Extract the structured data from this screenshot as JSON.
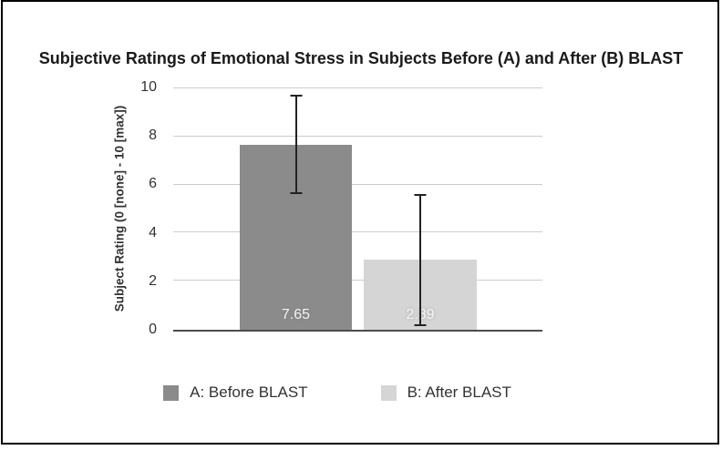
{
  "frame": {
    "border_color": "#000000",
    "background": "#ffffff"
  },
  "chart_data": {
    "type": "bar",
    "title": "Subjective Ratings of Emotional Stress in Subjects Before (A) and After (B) BLAST",
    "xlabel": "",
    "ylabel": "Subject Rating (0 [none] - 10 [max])",
    "ylim": [
      0,
      10
    ],
    "yticks": [
      0,
      2,
      4,
      6,
      8,
      10
    ],
    "grid": true,
    "legend_position": "bottom",
    "error_bars": true,
    "series": [
      {
        "name": "A: Before BLAST",
        "value": 7.65,
        "data_label": "7.65",
        "error_low": 5.6,
        "error_high": 9.7,
        "bar_color": "#8b8b8b"
      },
      {
        "name": "B: After BLAST",
        "value": 2.89,
        "data_label": "2.89",
        "error_low": 0.15,
        "error_high": 5.6,
        "bar_color": "#d5d5d5"
      }
    ],
    "colors": {
      "gridline": "#cccccc",
      "axis_line": "#4d4d4d",
      "error_bar": "#222222",
      "data_label": "#f5f5f5",
      "tick_label": "#333333",
      "title": "#1a1a1a",
      "legend_label": "#333333"
    }
  }
}
